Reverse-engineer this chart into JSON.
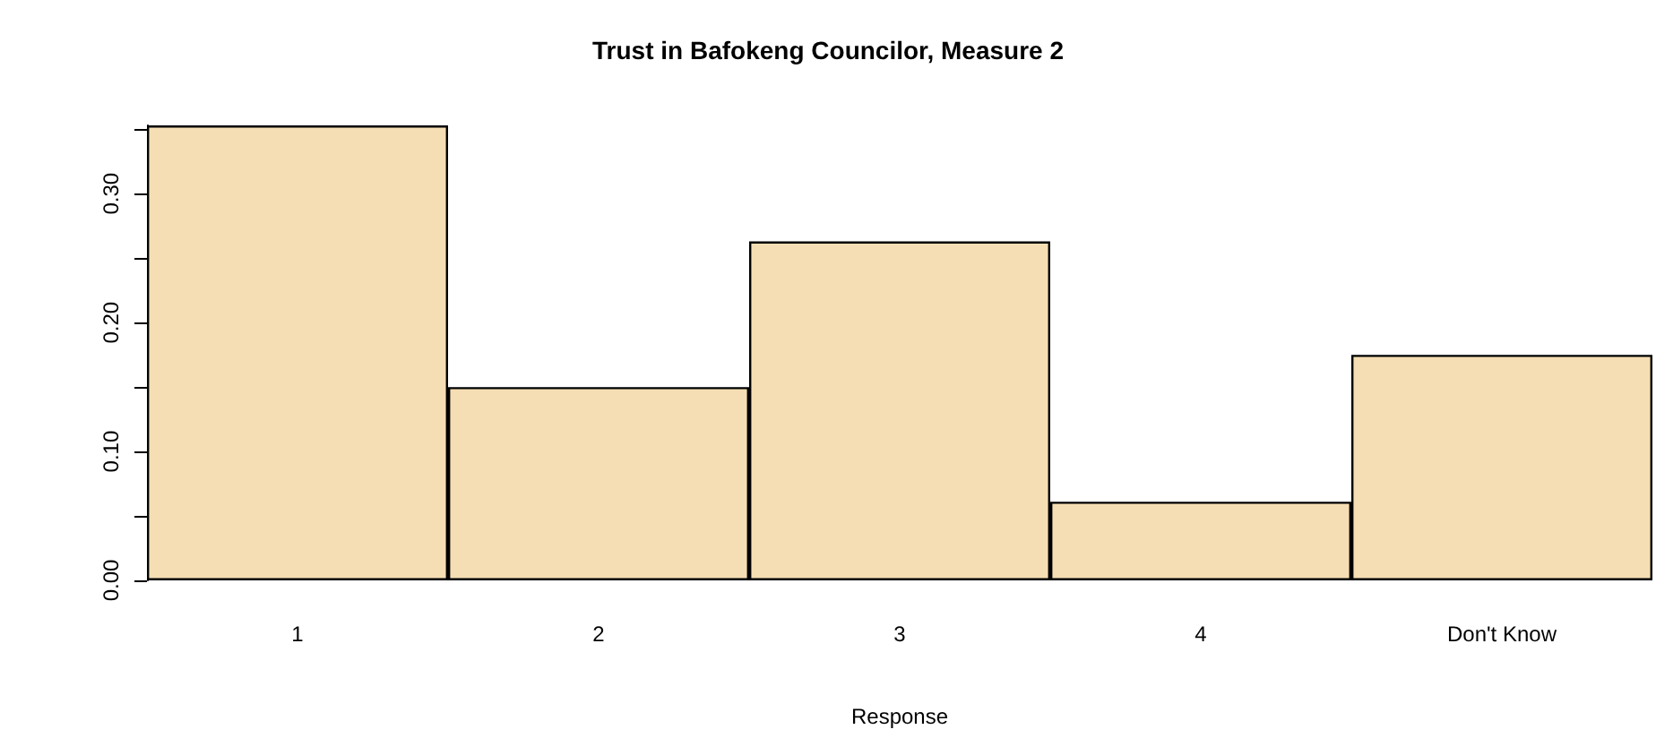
{
  "chart_data": {
    "type": "bar",
    "title": "Trust in Bafokeng Councilor, Measure 2",
    "xlabel": "Response",
    "categories": [
      "1",
      "2",
      "3",
      "4",
      "Don't Know"
    ],
    "values": [
      0.353,
      0.15,
      0.263,
      0.061,
      0.175
    ],
    "color": "#f5deb3",
    "ylim": [
      0,
      0.353
    ],
    "yticks": [
      {
        "value": 0,
        "label": "0.00"
      },
      {
        "value": 0.05,
        "label": null
      },
      {
        "value": 0.1,
        "label": "0.10"
      },
      {
        "value": 0.15,
        "label": null
      },
      {
        "value": 0.2,
        "label": "0.20"
      },
      {
        "value": 0.25,
        "label": null
      },
      {
        "value": 0.3,
        "label": "0.30"
      },
      {
        "value": 0.35,
        "label": null
      }
    ],
    "grid": false
  }
}
